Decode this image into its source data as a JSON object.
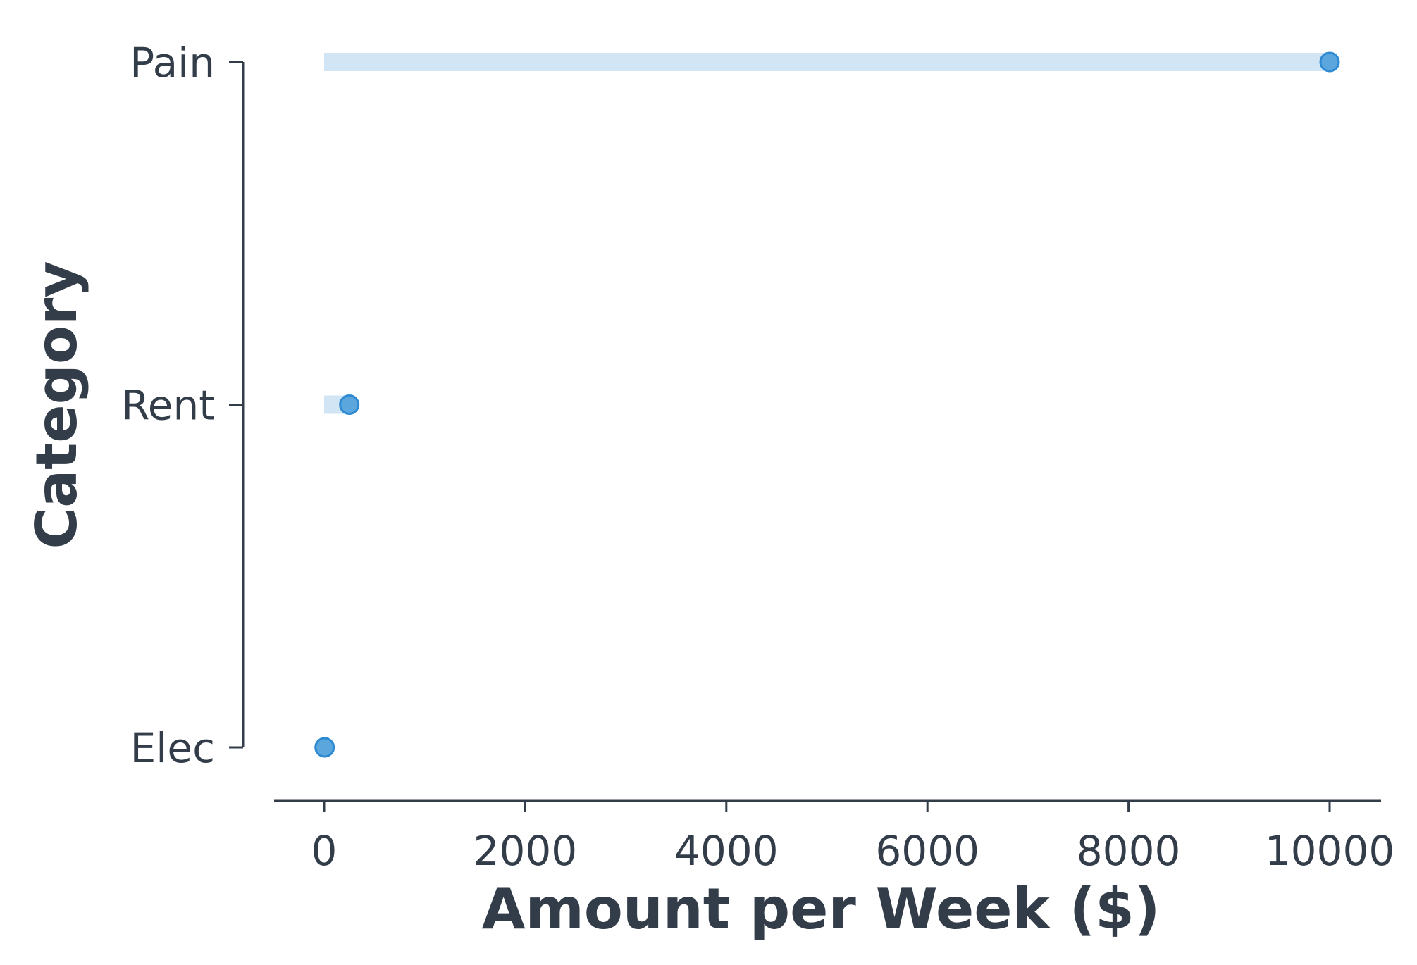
{
  "chart_data": {
    "type": "lollipop",
    "title": "",
    "xlabel": "Amount per Week ($)",
    "ylabel": "Category",
    "categories": [
      "Pain",
      "Rent",
      "Elec"
    ],
    "values": [
      10000,
      250,
      5
    ],
    "xlim": [
      -250,
      10250
    ],
    "xticks": [
      0,
      2000,
      4000,
      6000,
      8000,
      10000
    ],
    "xtick_labels": [
      "0",
      "2000",
      "4000",
      "6000",
      "8000",
      "10000"
    ],
    "grid": false,
    "legend": "none",
    "colors": {
      "stem": "#d1e5f4",
      "marker_fill": "#5aa6dd",
      "marker_edge": "#2e8ad2",
      "axis": "#333d49",
      "text": "#333d49"
    }
  }
}
